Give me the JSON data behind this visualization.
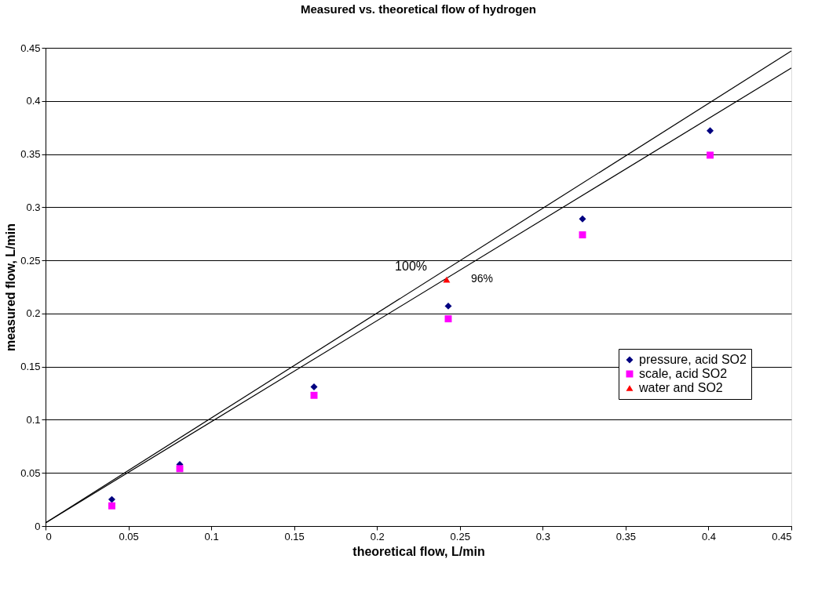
{
  "chart_data": {
    "type": "scatter",
    "title": "Measured vs. theoretical flow of hydrogen",
    "xlabel": "theoretical flow, L/min",
    "ylabel": "measured flow, L/min",
    "series": [
      {
        "name": "pressure, acid SO2",
        "color": "#000080",
        "marker": "diamond",
        "x": [
          0.04,
          0.081,
          0.162,
          0.243,
          0.324,
          0.401
        ],
        "values": [
          0.025,
          0.058,
          0.131,
          0.207,
          0.289,
          0.372
        ]
      },
      {
        "name": "scale, acid SO2",
        "color": "#ff00ff",
        "marker": "square",
        "x": [
          0.04,
          0.081,
          0.162,
          0.243,
          0.324,
          0.401
        ],
        "values": [
          0.019,
          0.054,
          0.123,
          0.195,
          0.274,
          0.349
        ]
      },
      {
        "name": "water and SO2",
        "color": "#ff0000",
        "marker": "triangle",
        "x": [
          0.242
        ],
        "values": [
          0.232
        ]
      },
      {
        "type": "line",
        "name": "100%",
        "color": "#000000",
        "line_style": "solid",
        "x": [
          0,
          0.45
        ],
        "values": [
          0.003,
          0.447
        ]
      },
      {
        "type": "line",
        "name": "96%",
        "color": "#000000",
        "line_style": "solid",
        "x": [
          0,
          0.45
        ],
        "values": [
          0.003,
          0.431
        ]
      }
    ],
    "xlim": [
      0,
      0.45
    ],
    "ylim": [
      0,
      0.45
    ],
    "xticks": [
      0,
      0.05,
      0.1,
      0.15,
      0.2,
      0.25,
      0.3,
      0.35,
      0.4,
      0.45
    ],
    "yticks": [
      0,
      0.05,
      0.1,
      0.15,
      0.2,
      0.25,
      0.3,
      0.35,
      0.4,
      0.45
    ],
    "grid": "y",
    "legend": "right"
  }
}
